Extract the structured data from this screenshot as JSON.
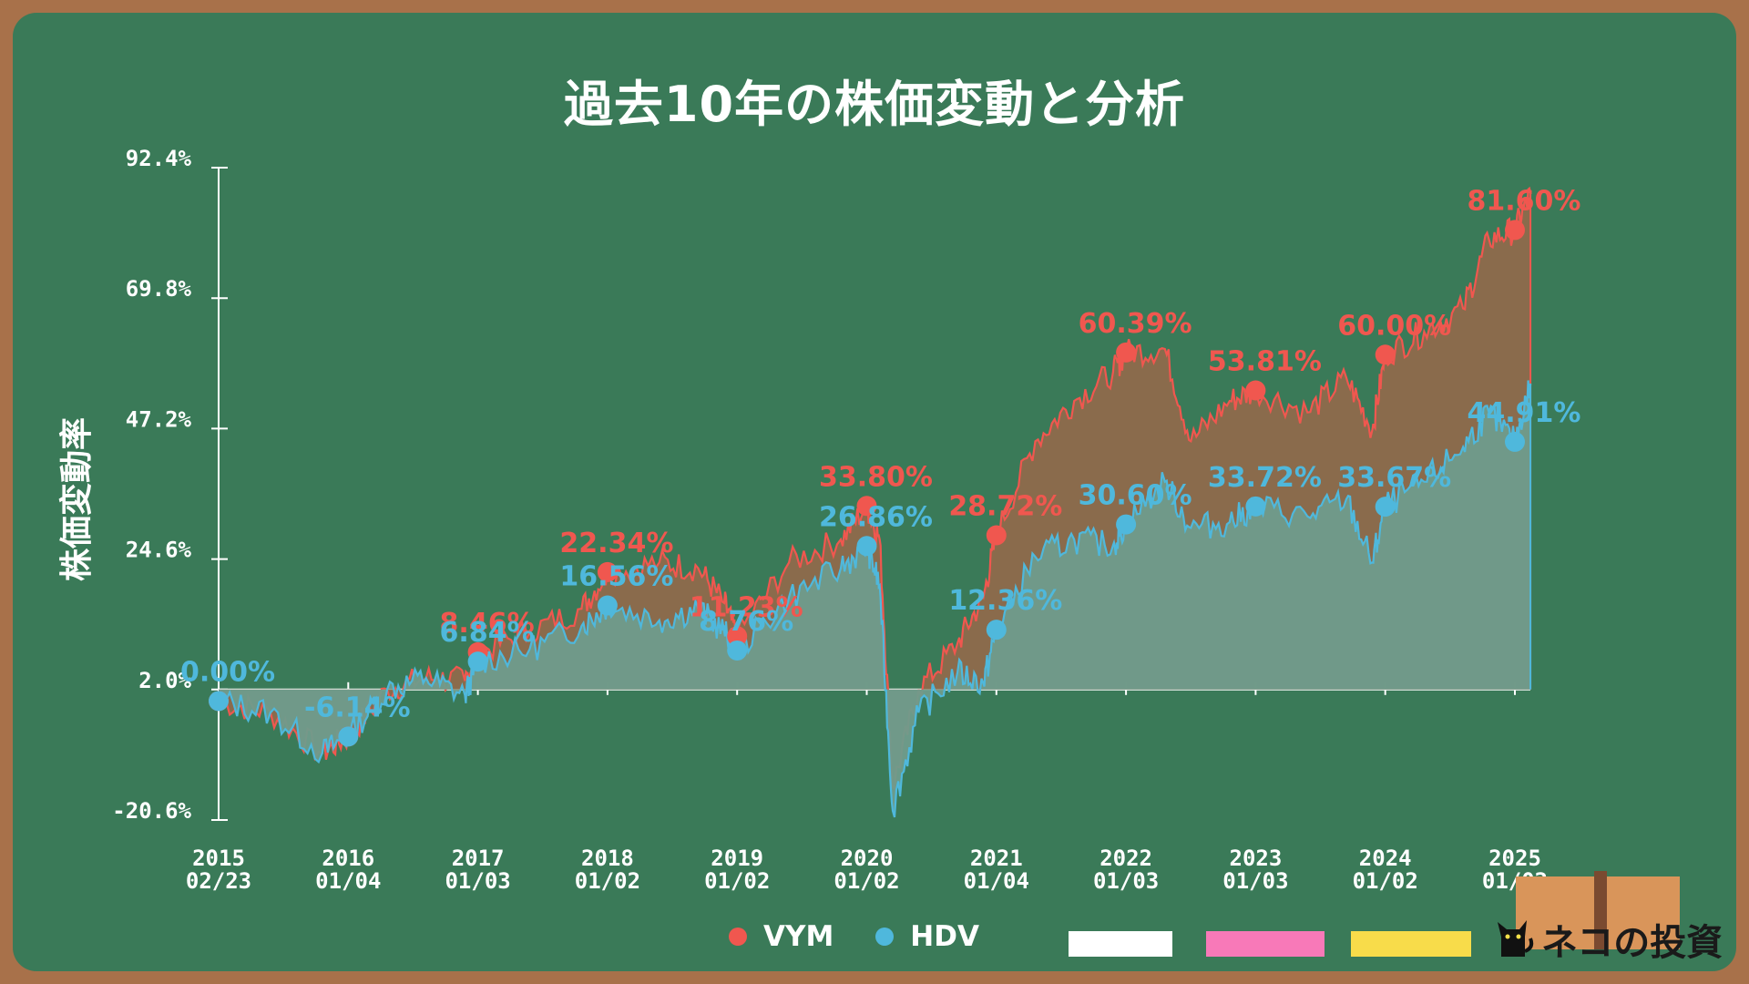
{
  "page": {
    "title": "過去10年の株価変動と分析",
    "logo_text": "ネコの投資",
    "colors": {
      "board": "#3a7a58",
      "frame": "#a8714a",
      "vym": "#f0574f",
      "hdv": "#4fb8dc",
      "vym_fill": "#8e6a4c",
      "hdv_fill": "#6f9c8c",
      "swatch_white": "#ffffff",
      "swatch_pink": "#f879b8",
      "swatch_yellow": "#f8dc4a"
    }
  },
  "chart_data": {
    "type": "line",
    "title": "過去10年の株価変動と分析",
    "ylabel": "株価変動率",
    "xlabel": "",
    "ylim": [
      -20.6,
      92.4
    ],
    "y_ticks": [
      "92.4%",
      "69.8%",
      "47.2%",
      "24.6%",
      "2.0%",
      "-20.6%"
    ],
    "x_ticks": [
      {
        "year": "2015",
        "date": "02/23"
      },
      {
        "year": "2016",
        "date": "01/04"
      },
      {
        "year": "2017",
        "date": "01/03"
      },
      {
        "year": "2018",
        "date": "01/02"
      },
      {
        "year": "2019",
        "date": "01/02"
      },
      {
        "year": "2020",
        "date": "01/02"
      },
      {
        "year": "2021",
        "date": "01/04"
      },
      {
        "year": "2022",
        "date": "01/03"
      },
      {
        "year": "2023",
        "date": "01/03"
      },
      {
        "year": "2024",
        "date": "01/02"
      },
      {
        "year": "2025",
        "date": "01/02"
      }
    ],
    "series": [
      {
        "name": "VYM",
        "color": "#f0574f",
        "values": [
          0.0,
          -6.14,
          8.46,
          22.34,
          11.23,
          33.8,
          28.72,
          60.39,
          53.81,
          60.0,
          81.6
        ],
        "labels": [
          "",
          "",
          "8.46%",
          "22.34%",
          "11.23%",
          "33.80%",
          "28.72%",
          "60.39%",
          "53.81%",
          "60.00%",
          "81.60%"
        ],
        "path": [
          [
            0,
            0
          ],
          [
            0.4,
            -2
          ],
          [
            0.8,
            -9
          ],
          [
            1.0,
            -6.14
          ],
          [
            1.3,
            2
          ],
          [
            1.6,
            4
          ],
          [
            1.9,
            3.5
          ],
          [
            2.0,
            8.46
          ],
          [
            2.4,
            12
          ],
          [
            2.8,
            16
          ],
          [
            3.0,
            22.34
          ],
          [
            3.4,
            24
          ],
          [
            3.7,
            23
          ],
          [
            3.9,
            17
          ],
          [
            4.0,
            11.23
          ],
          [
            4.4,
            24
          ],
          [
            4.8,
            28
          ],
          [
            5.0,
            33.8
          ],
          [
            5.1,
            28
          ],
          [
            5.2,
            -15
          ],
          [
            5.4,
            2
          ],
          [
            5.7,
            10
          ],
          [
            5.9,
            18
          ],
          [
            6.0,
            28.72
          ],
          [
            6.3,
            45
          ],
          [
            6.6,
            52
          ],
          [
            6.9,
            57
          ],
          [
            7.0,
            60.39
          ],
          [
            7.3,
            61
          ],
          [
            7.5,
            45
          ],
          [
            7.8,
            52
          ],
          [
            8.0,
            53.81
          ],
          [
            8.4,
            50
          ],
          [
            8.7,
            56
          ],
          [
            8.9,
            47
          ],
          [
            9.0,
            60.0
          ],
          [
            9.3,
            64
          ],
          [
            9.6,
            68
          ],
          [
            9.8,
            80
          ],
          [
            10.0,
            81.6
          ],
          [
            10.12,
            88
          ],
          [
            10.12,
            0
          ]
        ]
      },
      {
        "name": "HDV",
        "color": "#4fb8dc",
        "values": [
          0.0,
          -6.14,
          6.84,
          16.56,
          8.76,
          26.86,
          12.36,
          30.6,
          33.72,
          33.67,
          44.91
        ],
        "labels": [
          "0.00%",
          "-6.14%",
          "6.84%",
          "16.56%",
          "8.76%",
          "26.86%",
          "12.36%",
          "30.60%",
          "33.72%",
          "33.67%",
          "44.91%"
        ],
        "path": [
          [
            0,
            0
          ],
          [
            0.4,
            -2
          ],
          [
            0.8,
            -9
          ],
          [
            1.0,
            -6.14
          ],
          [
            1.3,
            2
          ],
          [
            1.6,
            4
          ],
          [
            1.9,
            1
          ],
          [
            2.0,
            6.84
          ],
          [
            2.4,
            9
          ],
          [
            2.8,
            13
          ],
          [
            3.0,
            16.56
          ],
          [
            3.4,
            14
          ],
          [
            3.7,
            16
          ],
          [
            3.9,
            12
          ],
          [
            4.0,
            8.76
          ],
          [
            4.4,
            18
          ],
          [
            4.8,
            23
          ],
          [
            5.0,
            26.86
          ],
          [
            5.1,
            20
          ],
          [
            5.2,
            -19
          ],
          [
            5.4,
            -2
          ],
          [
            5.7,
            5
          ],
          [
            5.9,
            3
          ],
          [
            6.0,
            12.36
          ],
          [
            6.3,
            25
          ],
          [
            6.6,
            28
          ],
          [
            6.9,
            27
          ],
          [
            7.0,
            30.6
          ],
          [
            7.3,
            38
          ],
          [
            7.5,
            30
          ],
          [
            7.8,
            31
          ],
          [
            8.0,
            33.72
          ],
          [
            8.4,
            32
          ],
          [
            8.7,
            35
          ],
          [
            8.9,
            24
          ],
          [
            9.0,
            33.67
          ],
          [
            9.3,
            38
          ],
          [
            9.6,
            44
          ],
          [
            9.8,
            50
          ],
          [
            10.0,
            44.91
          ],
          [
            10.12,
            55
          ],
          [
            10.12,
            0
          ]
        ]
      }
    ],
    "legend": [
      "VYM",
      "HDV"
    ],
    "legend_position": "bottom-center",
    "grid": false
  }
}
